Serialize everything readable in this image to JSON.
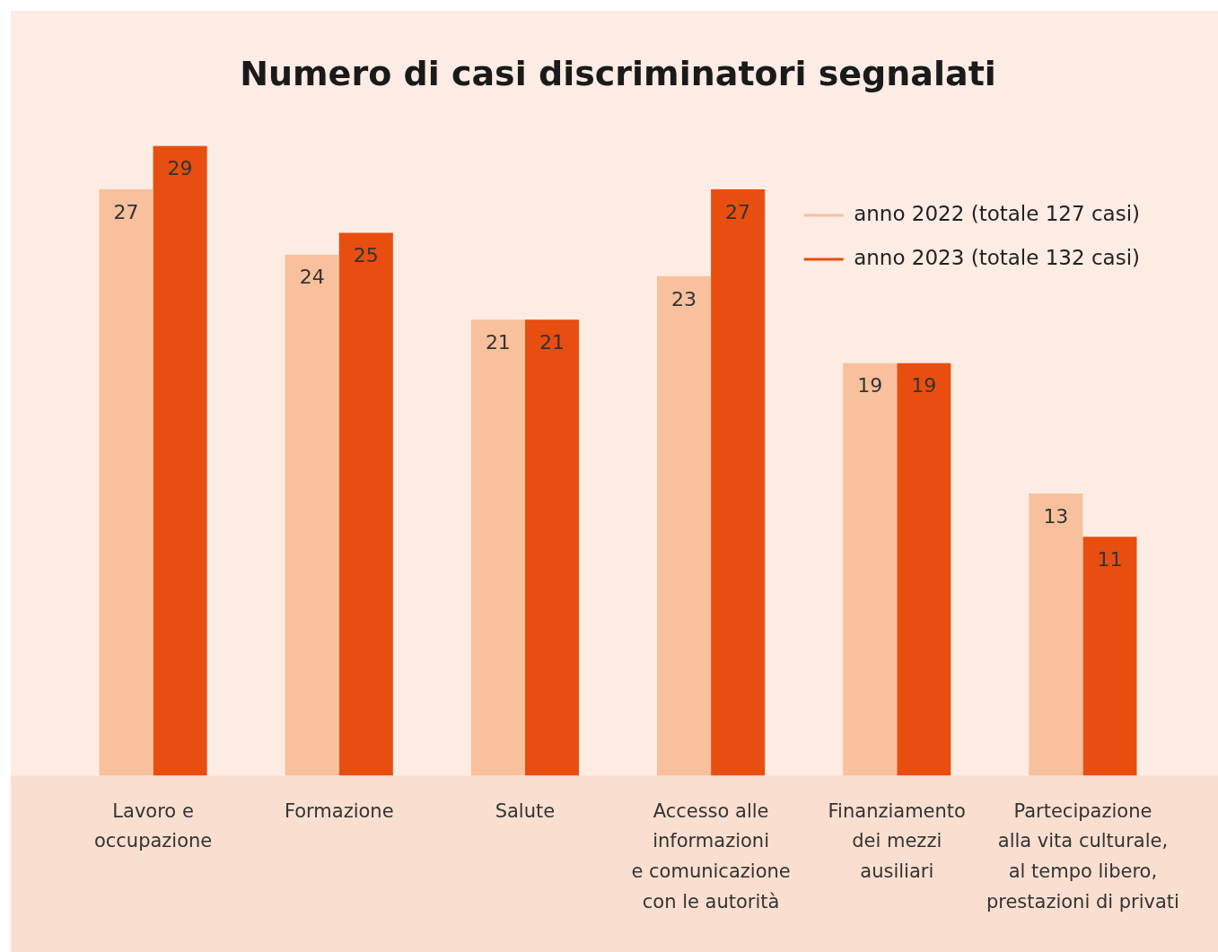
{
  "chart_data": {
    "type": "bar",
    "title": "Numero di casi discriminatori segnalati",
    "categories": [
      "Lavoro e\noccupazione",
      "Formazione",
      "Salute",
      "Accesso alle\ninformazioni\ne comunicazione\ncon le autorità",
      "Finanziamento\ndei mezzi\nausiliari",
      "Partecipazione\nalla vita culturale,\nal tempo libero,\nprestazioni di privati"
    ],
    "series": [
      {
        "name": "anno 2022 (totale 127 casi)",
        "color": "#f8c09c",
        "values": [
          27,
          24,
          21,
          23,
          19,
          13
        ]
      },
      {
        "name": "anno 2023 (totale 132 casi)",
        "color": "#e84e0f",
        "values": [
          29,
          25,
          21,
          27,
          19,
          11
        ]
      }
    ],
    "ylim": [
      0,
      29
    ],
    "tick_labels": "x",
    "data_labels": true,
    "legend": "top right",
    "grid": false
  }
}
